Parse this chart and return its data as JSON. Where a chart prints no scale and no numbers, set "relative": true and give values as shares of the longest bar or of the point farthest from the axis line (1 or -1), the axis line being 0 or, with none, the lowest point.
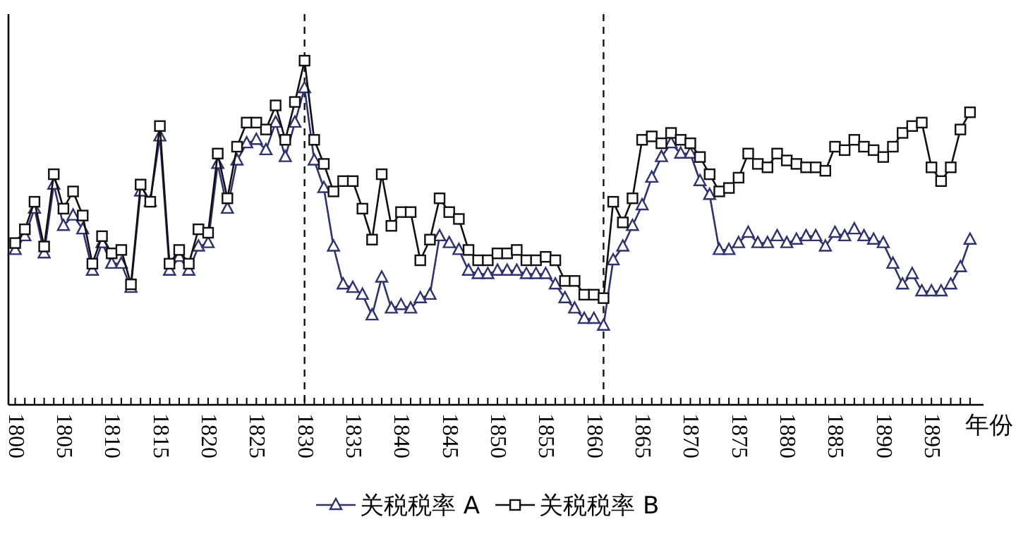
{
  "chart_data": {
    "type": "line",
    "relative": true,
    "xlabel": "年份",
    "x": [
      1800,
      1801,
      1802,
      1803,
      1804,
      1805,
      1806,
      1807,
      1808,
      1809,
      1810,
      1811,
      1812,
      1813,
      1814,
      1815,
      1816,
      1817,
      1818,
      1819,
      1820,
      1821,
      1822,
      1823,
      1824,
      1825,
      1826,
      1827,
      1828,
      1829,
      1830,
      1831,
      1832,
      1833,
      1834,
      1835,
      1836,
      1837,
      1838,
      1839,
      1840,
      1841,
      1842,
      1843,
      1844,
      1845,
      1846,
      1847,
      1848,
      1849,
      1850,
      1851,
      1852,
      1853,
      1854,
      1855,
      1856,
      1857,
      1858,
      1859,
      1860,
      1861,
      1862,
      1863,
      1864,
      1865,
      1866,
      1867,
      1868,
      1869,
      1870,
      1871,
      1872,
      1873,
      1874,
      1875,
      1876,
      1877,
      1878,
      1879,
      1880,
      1881,
      1882,
      1883,
      1884,
      1885,
      1886,
      1887,
      1888,
      1889,
      1890,
      1891,
      1892,
      1893,
      1894,
      1895,
      1896,
      1897,
      1898,
      1899
    ],
    "xlim": [
      1799.3,
      1900.4
    ],
    "xticks": [
      1800,
      {
        "value": 1801,
        "label": null
      },
      {
        "value": 1802,
        "label": null
      },
      {
        "value": 1803,
        "label": null
      },
      {
        "value": 1804,
        "label": null
      },
      1805,
      {
        "value": 1806,
        "label": null
      },
      {
        "value": 1807,
        "label": null
      },
      {
        "value": 1808,
        "label": null
      },
      {
        "value": 1809,
        "label": null
      },
      1810,
      {
        "value": 1811,
        "label": null
      },
      {
        "value": 1812,
        "label": null
      },
      {
        "value": 1813,
        "label": null
      },
      {
        "value": 1814,
        "label": null
      },
      1815,
      {
        "value": 1816,
        "label": null
      },
      {
        "value": 1817,
        "label": null
      },
      {
        "value": 1818,
        "label": null
      },
      {
        "value": 1819,
        "label": null
      },
      1820,
      {
        "value": 1821,
        "label": null
      },
      {
        "value": 1822,
        "label": null
      },
      {
        "value": 1823,
        "label": null
      },
      {
        "value": 1824,
        "label": null
      },
      1825,
      {
        "value": 1826,
        "label": null
      },
      {
        "value": 1827,
        "label": null
      },
      {
        "value": 1828,
        "label": null
      },
      {
        "value": 1829,
        "label": null
      },
      1830,
      {
        "value": 1831,
        "label": null
      },
      {
        "value": 1832,
        "label": null
      },
      {
        "value": 1833,
        "label": null
      },
      {
        "value": 1834,
        "label": null
      },
      1835,
      {
        "value": 1836,
        "label": null
      },
      {
        "value": 1837,
        "label": null
      },
      {
        "value": 1838,
        "label": null
      },
      {
        "value": 1839,
        "label": null
      },
      1840,
      {
        "value": 1841,
        "label": null
      },
      {
        "value": 1842,
        "label": null
      },
      {
        "value": 1843,
        "label": null
      },
      {
        "value": 1844,
        "label": null
      },
      1845,
      {
        "value": 1846,
        "label": null
      },
      {
        "value": 1847,
        "label": null
      },
      {
        "value": 1848,
        "label": null
      },
      {
        "value": 1849,
        "label": null
      },
      1850,
      {
        "value": 1851,
        "label": null
      },
      {
        "value": 1852,
        "label": null
      },
      {
        "value": 1853,
        "label": null
      },
      {
        "value": 1854,
        "label": null
      },
      1855,
      {
        "value": 1856,
        "label": null
      },
      {
        "value": 1857,
        "label": null
      },
      {
        "value": 1858,
        "label": null
      },
      {
        "value": 1859,
        "label": null
      },
      1860,
      {
        "value": 1861,
        "label": null
      },
      {
        "value": 1862,
        "label": null
      },
      {
        "value": 1863,
        "label": null
      },
      {
        "value": 1864,
        "label": null
      },
      1865,
      {
        "value": 1866,
        "label": null
      },
      {
        "value": 1867,
        "label": null
      },
      {
        "value": 1868,
        "label": null
      },
      {
        "value": 1869,
        "label": null
      },
      1870,
      {
        "value": 1871,
        "label": null
      },
      {
        "value": 1872,
        "label": null
      },
      {
        "value": 1873,
        "label": null
      },
      {
        "value": 1874,
        "label": null
      },
      1875,
      {
        "value": 1876,
        "label": null
      },
      {
        "value": 1877,
        "label": null
      },
      {
        "value": 1878,
        "label": null
      },
      {
        "value": 1879,
        "label": null
      },
      1880,
      {
        "value": 1881,
        "label": null
      },
      {
        "value": 1882,
        "label": null
      },
      {
        "value": 1883,
        "label": null
      },
      {
        "value": 1884,
        "label": null
      },
      1885,
      {
        "value": 1886,
        "label": null
      },
      {
        "value": 1887,
        "label": null
      },
      {
        "value": 1888,
        "label": null
      },
      {
        "value": 1889,
        "label": null
      },
      1890,
      {
        "value": 1891,
        "label": null
      },
      {
        "value": 1892,
        "label": null
      },
      {
        "value": 1893,
        "label": null
      },
      {
        "value": 1894,
        "label": null
      },
      1895,
      {
        "value": 1896,
        "label": null
      },
      {
        "value": 1897,
        "label": null
      },
      {
        "value": 1898,
        "label": null
      },
      {
        "value": 1899,
        "label": null
      }
    ],
    "series": [
      {
        "name": "关税税率 A",
        "color": "#2e3270",
        "marker": "triangle",
        "values": [
          0.45,
          0.49,
          0.57,
          0.44,
          0.64,
          0.52,
          0.55,
          0.51,
          0.39,
          0.47,
          0.41,
          0.41,
          0.34,
          0.62,
          0.59,
          0.78,
          0.39,
          0.43,
          0.39,
          0.46,
          0.47,
          0.7,
          0.57,
          0.71,
          0.76,
          0.77,
          0.74,
          0.82,
          0.72,
          0.82,
          0.92,
          0.71,
          0.63,
          0.46,
          0.35,
          0.34,
          0.32,
          0.26,
          0.37,
          0.28,
          0.29,
          0.28,
          0.31,
          0.32,
          0.49,
          0.47,
          0.45,
          0.39,
          0.38,
          0.38,
          0.39,
          0.39,
          0.39,
          0.38,
          0.38,
          0.38,
          0.35,
          0.31,
          0.28,
          0.25,
          0.25,
          0.23,
          0.42,
          0.46,
          0.52,
          0.58,
          0.66,
          0.72,
          0.76,
          0.73,
          0.73,
          0.65,
          0.61,
          0.45,
          0.45,
          0.47,
          0.5,
          0.47,
          0.47,
          0.49,
          0.47,
          0.48,
          0.49,
          0.49,
          0.46,
          0.5,
          0.49,
          0.51,
          0.49,
          0.48,
          0.47,
          0.41,
          0.35,
          0.38,
          0.33,
          0.33,
          0.33,
          0.35,
          0.4,
          0.48
        ]
      },
      {
        "name": "关税税率 B",
        "color": "#111111",
        "marker": "square",
        "values": [
          0.47,
          0.51,
          0.59,
          0.46,
          0.67,
          0.57,
          0.62,
          0.55,
          0.41,
          0.49,
          0.44,
          0.45,
          0.35,
          0.64,
          0.59,
          0.81,
          0.41,
          0.45,
          0.41,
          0.51,
          0.5,
          0.73,
          0.6,
          0.75,
          0.82,
          0.82,
          0.8,
          0.87,
          0.77,
          0.88,
          1.0,
          0.77,
          0.7,
          0.62,
          0.65,
          0.65,
          0.57,
          0.48,
          0.67,
          0.52,
          0.56,
          0.56,
          0.42,
          0.48,
          0.6,
          0.56,
          0.54,
          0.45,
          0.42,
          0.42,
          0.44,
          0.44,
          0.45,
          0.42,
          0.42,
          0.43,
          0.42,
          0.36,
          0.36,
          0.32,
          0.32,
          0.31,
          0.59,
          0.53,
          0.6,
          0.77,
          0.78,
          0.76,
          0.79,
          0.77,
          0.76,
          0.72,
          0.67,
          0.62,
          0.63,
          0.66,
          0.73,
          0.7,
          0.69,
          0.73,
          0.71,
          0.7,
          0.69,
          0.69,
          0.68,
          0.75,
          0.74,
          0.77,
          0.75,
          0.74,
          0.72,
          0.75,
          0.79,
          0.81,
          0.82,
          0.69,
          0.65,
          0.69,
          0.8,
          0.85
        ]
      }
    ],
    "ref_lines": [
      {
        "axis": "x",
        "value": 1830,
        "color": "#111111",
        "line_style": "dashed"
      },
      {
        "axis": "x",
        "value": 1861,
        "color": "#111111",
        "line_style": "dashed"
      }
    ],
    "legend": "bottom",
    "grid": false
  }
}
